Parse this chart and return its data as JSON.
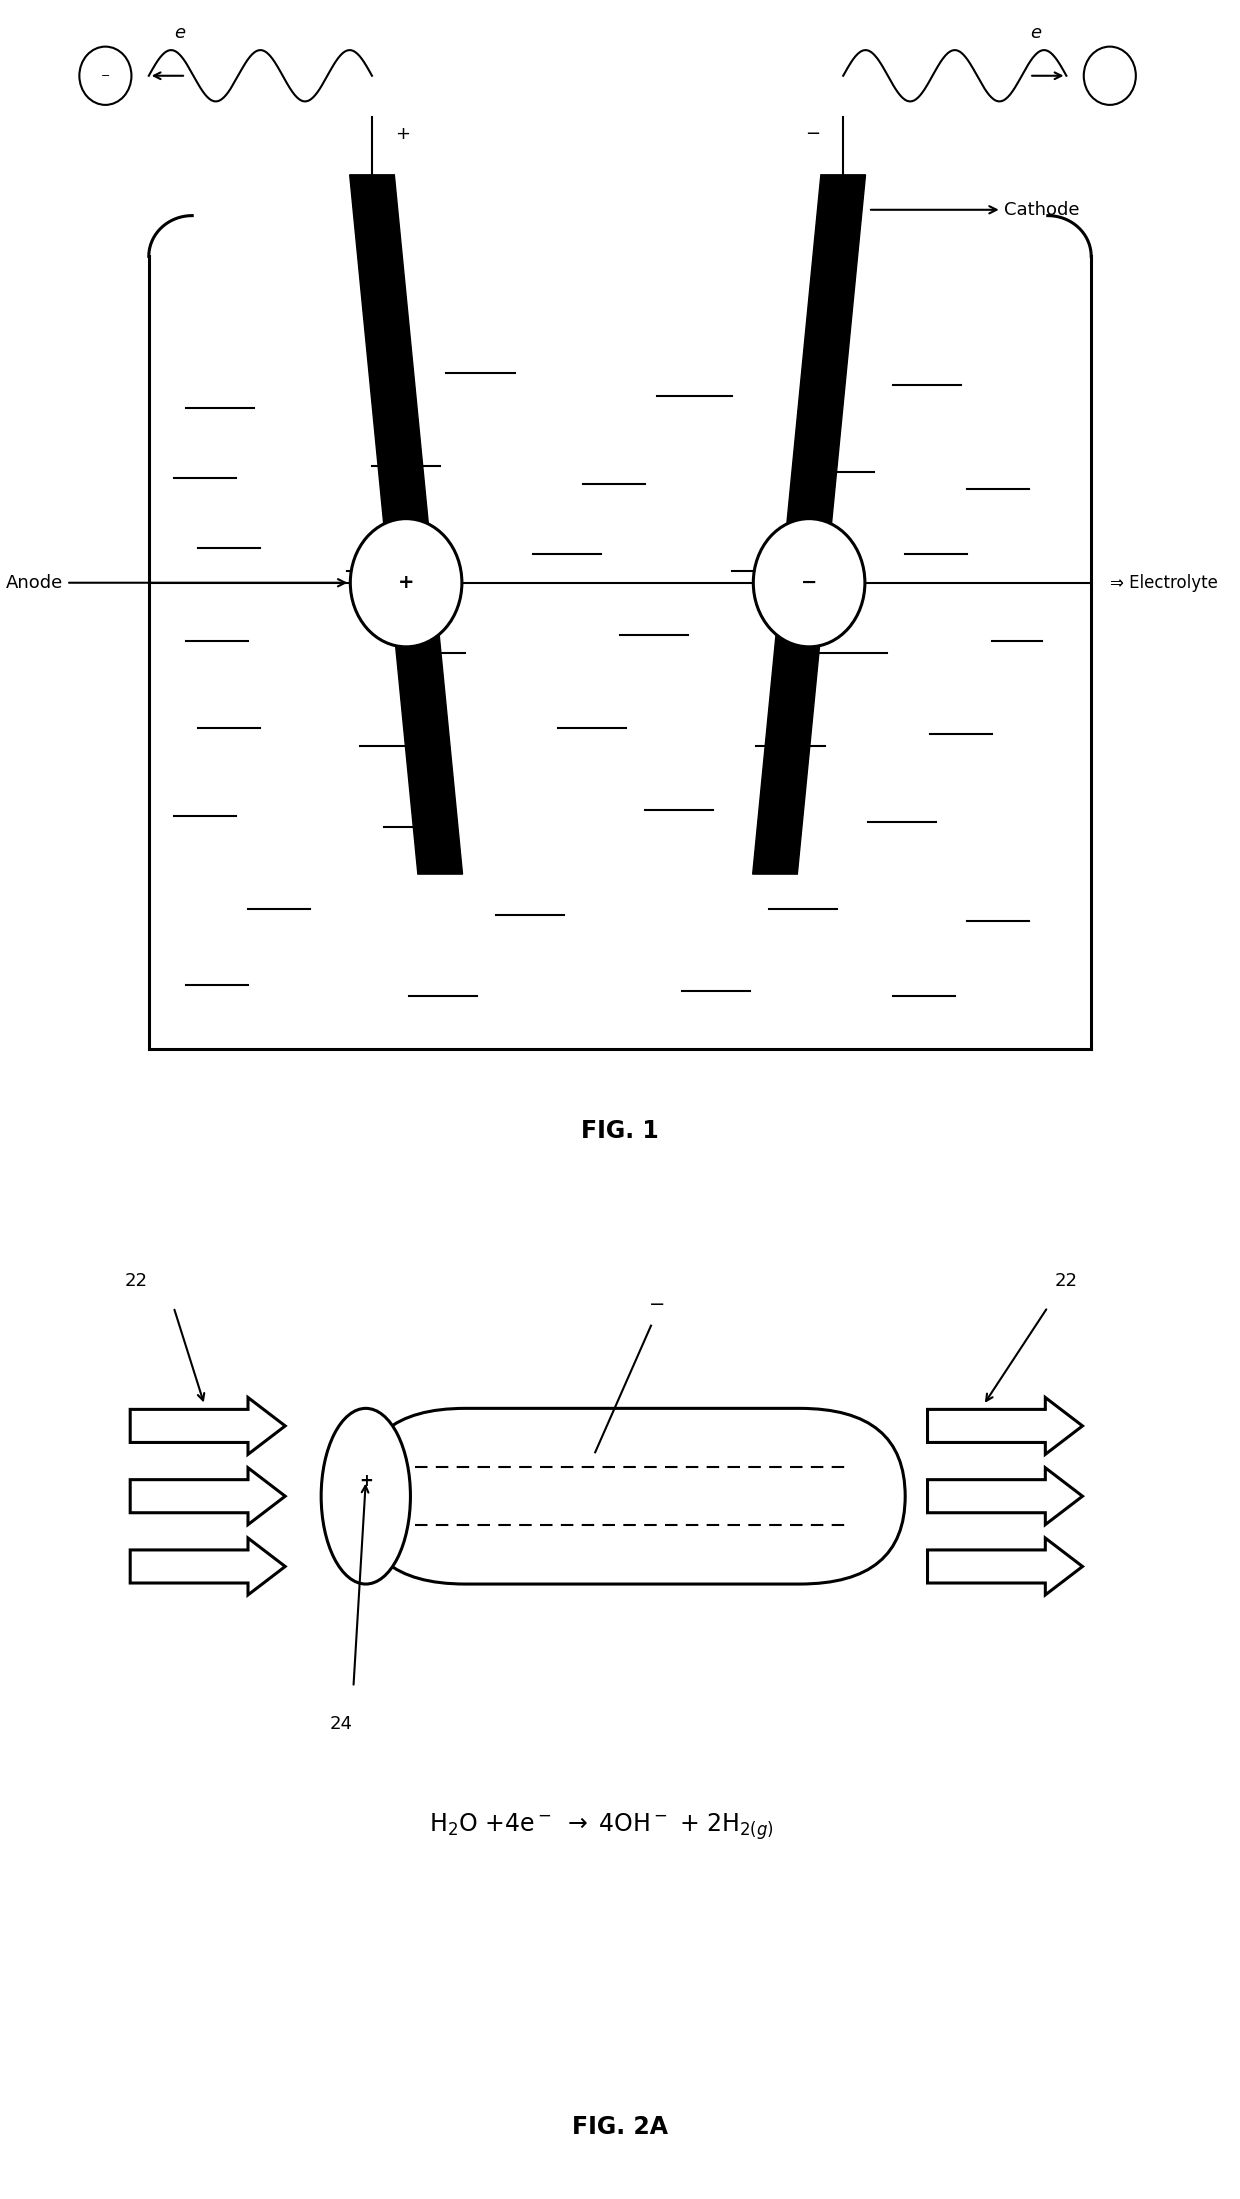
{
  "fig1": {
    "fig_label": "FIG. 1",
    "anode_label": "Anode",
    "cathode_label": "Cathode",
    "electrolyte_label": "⇒ Electrolyte"
  },
  "fig2a": {
    "fig_label": "FIG. 2A",
    "label_22": "22",
    "label_24": "24"
  },
  "lw_thick": 4.0,
  "lw_medium": 2.2,
  "lw_thin": 1.5,
  "bg_color": "#ffffff",
  "line_color": "#000000"
}
